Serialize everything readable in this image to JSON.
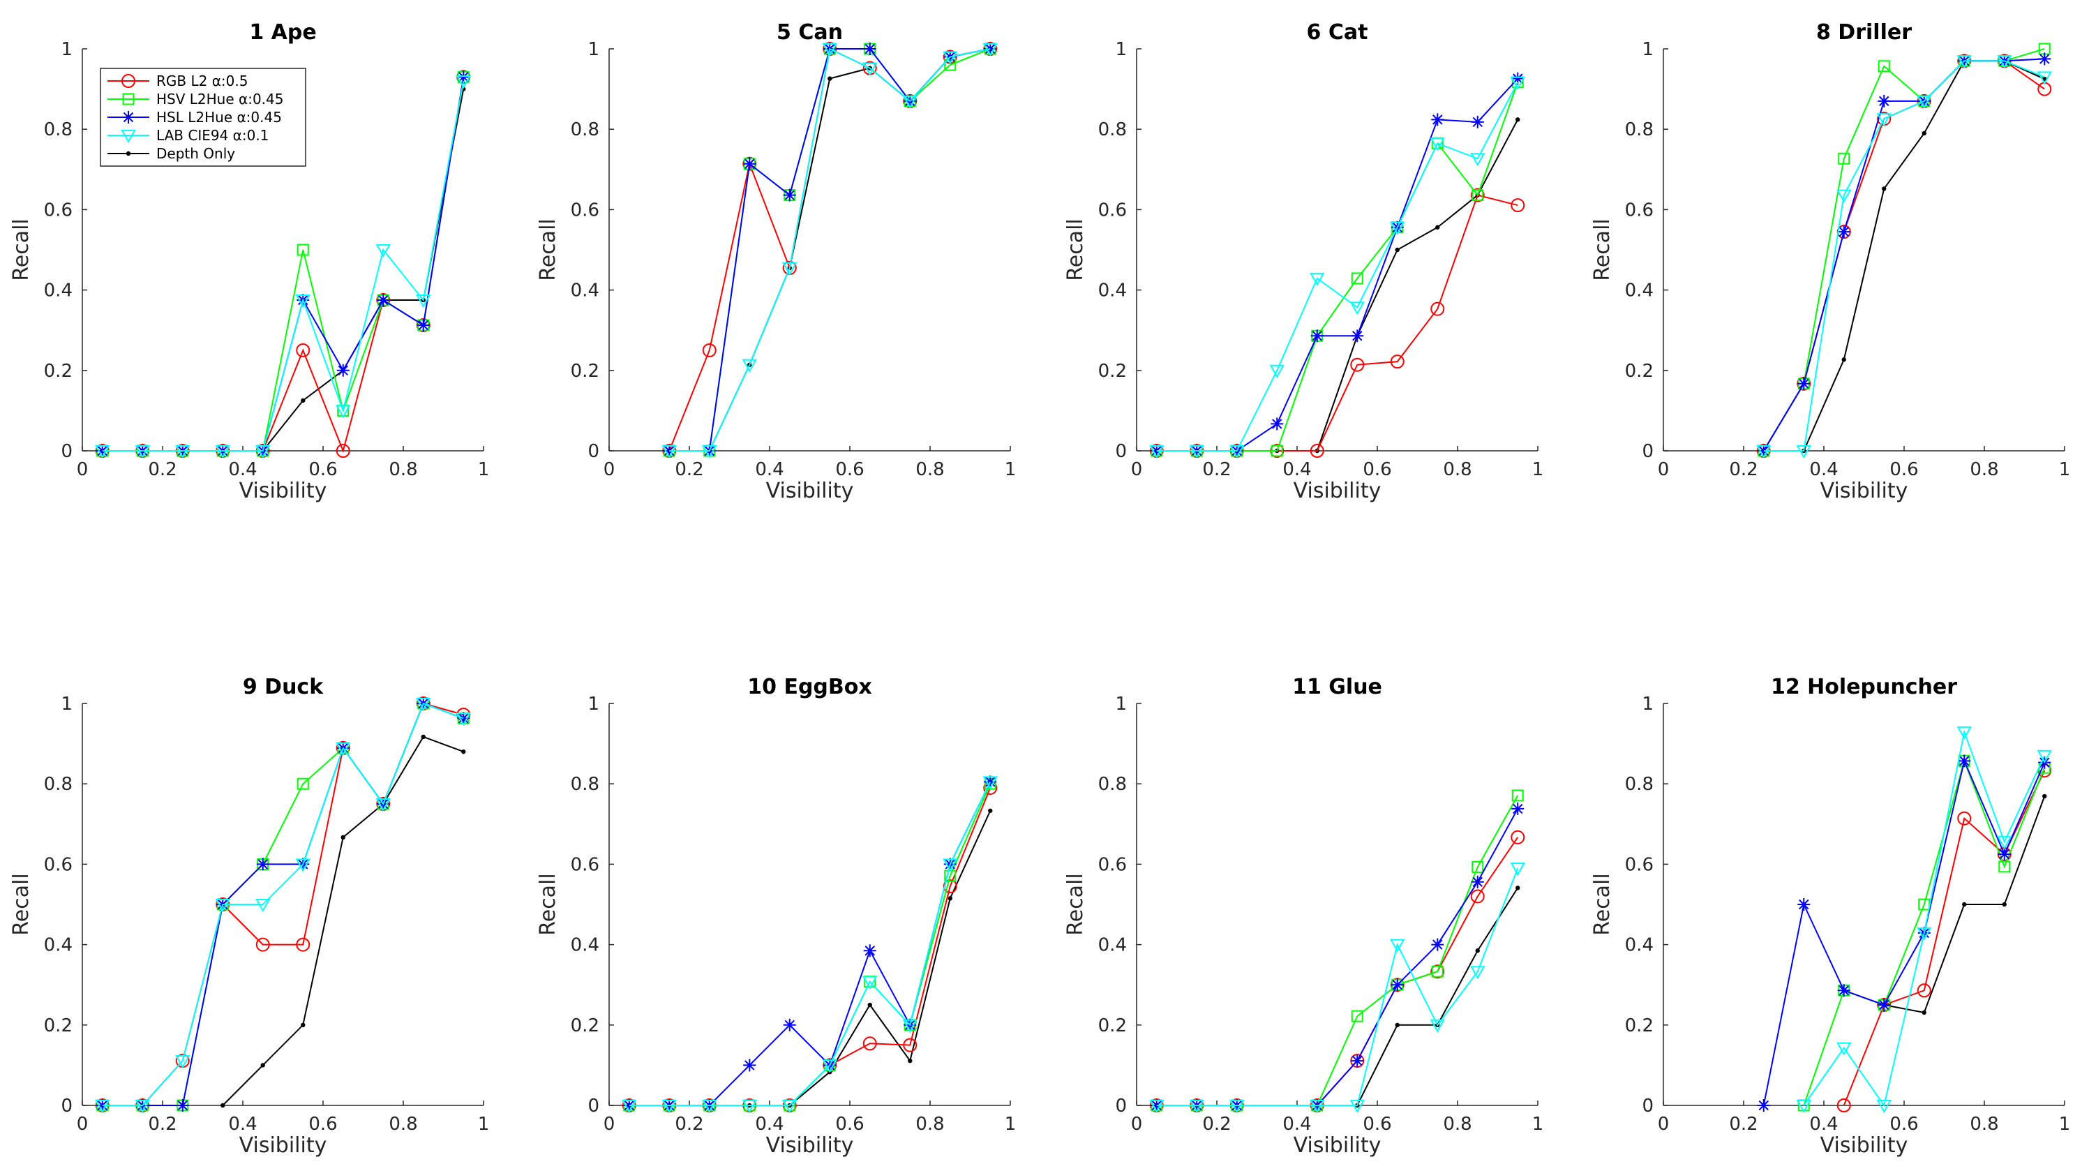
{
  "figure": {
    "legend_location": "upper-left of first panel"
  },
  "legend": [
    {
      "label": "RGB L2 α:0.5",
      "color": "#ff0000",
      "marker": "circle"
    },
    {
      "label": "HSV L2Hue α:0.45",
      "color": "#00ff00",
      "marker": "square"
    },
    {
      "label": "HSL L2Hue α:0.45",
      "color": "#0000ff",
      "marker": "asterisk"
    },
    {
      "label": "LAB CIE94 α:0.1",
      "color": "#00ffff",
      "marker": "triangle-down"
    },
    {
      "label": "Depth Only",
      "color": "#000000",
      "marker": "dot"
    }
  ],
  "chart_data": [
    {
      "type": "line",
      "title": "1 Ape",
      "xlabel": "Visibility",
      "ylabel": "Recall",
      "xlim": [
        0,
        1
      ],
      "ylim": [
        0,
        1
      ],
      "xticks": [
        "0",
        "0.2",
        "0.4",
        "0.6",
        "0.8",
        "1"
      ],
      "yticks": [
        "0",
        "0.2",
        "0.4",
        "0.6",
        "0.8",
        "1"
      ],
      "x": [
        0.05,
        0.15,
        0.25,
        0.35,
        0.45,
        0.55,
        0.65,
        0.75,
        0.85,
        0.95
      ],
      "series": [
        {
          "name": "RGB L2 α:0.5",
          "values": [
            0,
            0,
            0,
            0,
            0,
            0.25,
            0,
            0.375,
            0.3125,
            0.93
          ]
        },
        {
          "name": "HSV L2Hue α:0.45",
          "values": [
            0,
            0,
            0,
            0,
            0,
            0.5,
            0.1,
            0.375,
            0.3125,
            0.93
          ]
        },
        {
          "name": "HSL L2Hue α:0.45",
          "values": [
            0,
            0,
            0,
            0,
            0,
            0.375,
            0.2,
            0.375,
            0.3125,
            0.93
          ]
        },
        {
          "name": "LAB CIE94 α:0.1",
          "values": [
            0,
            0,
            0,
            0,
            0,
            0.375,
            0.1,
            0.5,
            0.375,
            0.92
          ]
        },
        {
          "name": "Depth Only",
          "values": [
            0,
            0,
            0,
            0,
            0,
            0.125,
            0.2,
            0.375,
            0.375,
            0.9
          ]
        }
      ]
    },
    {
      "type": "line",
      "title": "5 Can",
      "xlabel": "Visibility",
      "ylabel": "Recall",
      "xlim": [
        0,
        1
      ],
      "ylim": [
        0,
        1
      ],
      "xticks": [
        "0",
        "0.2",
        "0.4",
        "0.6",
        "0.8",
        "1"
      ],
      "yticks": [
        "0",
        "0.2",
        "0.4",
        "0.6",
        "0.8",
        "1"
      ],
      "x": [
        0.15,
        0.25,
        0.35,
        0.45,
        0.55,
        0.65,
        0.75,
        0.85,
        0.95
      ],
      "series": [
        {
          "name": "RGB L2 α:0.5",
          "values": [
            0,
            0.25,
            0.714,
            0.455,
            1.0,
            0.952,
            0.87,
            0.98,
            1.0
          ]
        },
        {
          "name": "HSV L2Hue α:0.45",
          "values": [
            0,
            0,
            0.714,
            0.636,
            1.0,
            1.0,
            0.87,
            0.96,
            1.0
          ]
        },
        {
          "name": "HSL L2Hue α:0.45",
          "values": [
            0,
            0,
            0.714,
            0.636,
            1.0,
            1.0,
            0.87,
            0.98,
            1.0
          ]
        },
        {
          "name": "LAB CIE94 α:0.1",
          "values": [
            0,
            0,
            0.214,
            0.455,
            1.0,
            0.952,
            0.87,
            0.98,
            1.0
          ]
        },
        {
          "name": "Depth Only",
          "values": [
            0,
            0,
            0.214,
            0.455,
            0.926,
            0.952,
            0.87,
            0.98,
            1.0
          ]
        }
      ]
    },
    {
      "type": "line",
      "title": "6 Cat",
      "xlabel": "Visibility",
      "ylabel": "Recall",
      "xlim": [
        0,
        1
      ],
      "ylim": [
        0,
        1
      ],
      "xticks": [
        "0",
        "0.2",
        "0.4",
        "0.6",
        "0.8",
        "1"
      ],
      "yticks": [
        "0",
        "0.2",
        "0.4",
        "0.6",
        "0.8",
        "1"
      ],
      "x": [
        0.05,
        0.15,
        0.25,
        0.35,
        0.45,
        0.55,
        0.65,
        0.75,
        0.85,
        0.95
      ],
      "series": [
        {
          "name": "RGB L2 α:0.5",
          "values": [
            0,
            0,
            0,
            0,
            0,
            0.214,
            0.222,
            0.353,
            0.636,
            0.611
          ]
        },
        {
          "name": "HSV L2Hue α:0.45",
          "values": [
            0,
            0,
            0,
            0,
            0.286,
            0.429,
            0.556,
            0.765,
            0.636,
            0.917
          ]
        },
        {
          "name": "HSL L2Hue α:0.45",
          "values": [
            0,
            0,
            0,
            0.067,
            0.286,
            0.286,
            0.556,
            0.824,
            0.818,
            0.926
          ]
        },
        {
          "name": "LAB CIE94 α:0.1",
          "values": [
            0,
            0,
            0,
            0.2,
            0.429,
            0.357,
            0.556,
            0.765,
            0.727,
            0.917
          ]
        },
        {
          "name": "Depth Only",
          "values": [
            0,
            0,
            0,
            0,
            0,
            0.286,
            0.5,
            0.556,
            0.636,
            0.824
          ]
        }
      ]
    },
    {
      "type": "line",
      "title": "8 Driller",
      "xlabel": "Visibility",
      "ylabel": "Recall",
      "xlim": [
        0,
        1
      ],
      "ylim": [
        0,
        1
      ],
      "xticks": [
        "0",
        "0.2",
        "0.4",
        "0.6",
        "0.8",
        "1"
      ],
      "yticks": [
        "0",
        "0.2",
        "0.4",
        "0.6",
        "0.8",
        "1"
      ],
      "x": [
        0.25,
        0.35,
        0.45,
        0.55,
        0.65,
        0.75,
        0.85,
        0.95
      ],
      "series": [
        {
          "name": "RGB L2 α:0.5",
          "values": [
            0,
            0.167,
            0.545,
            0.826,
            0.87,
            0.97,
            0.97,
            0.9
          ]
        },
        {
          "name": "HSV L2Hue α:0.45",
          "values": [
            0,
            0.167,
            0.727,
            0.957,
            0.87,
            0.97,
            0.97,
            1.0
          ]
        },
        {
          "name": "HSL L2Hue α:0.45",
          "values": [
            0,
            0.167,
            0.545,
            0.87,
            0.87,
            0.97,
            0.97,
            0.975
          ]
        },
        {
          "name": "LAB CIE94 α:0.1",
          "values": [
            0,
            0,
            0.636,
            0.826,
            0.87,
            0.97,
            0.97,
            0.93
          ]
        },
        {
          "name": "Depth Only",
          "values": [
            0,
            0,
            0.227,
            0.652,
            0.79,
            0.97,
            0.97,
            0.925
          ]
        }
      ]
    },
    {
      "type": "line",
      "title": "9 Duck",
      "xlabel": "Visibility",
      "ylabel": "Recall",
      "xlim": [
        0,
        1
      ],
      "ylim": [
        0,
        1
      ],
      "xticks": [
        "0",
        "0.2",
        "0.4",
        "0.6",
        "0.8",
        "1"
      ],
      "yticks": [
        "0",
        "0.2",
        "0.4",
        "0.6",
        "0.8",
        "1"
      ],
      "x": [
        0.05,
        0.15,
        0.25,
        0.35,
        0.45,
        0.55,
        0.65,
        0.75,
        0.85,
        0.95
      ],
      "series": [
        {
          "name": "RGB L2 α:0.5",
          "values": [
            0,
            0,
            0.111,
            0.5,
            0.4,
            0.4,
            0.889,
            0.75,
            1.0,
            0.972
          ]
        },
        {
          "name": "HSV L2Hue α:0.45",
          "values": [
            0,
            0,
            0,
            0.5,
            0.6,
            0.8,
            0.889,
            0.75,
            1.0,
            0.963
          ]
        },
        {
          "name": "HSL L2Hue α:0.45",
          "values": [
            0,
            0,
            0,
            0.5,
            0.6,
            0.6,
            0.889,
            0.75,
            1.0,
            0.963
          ]
        },
        {
          "name": "LAB CIE94 α:0.1",
          "values": [
            0,
            0,
            0.111,
            0.5,
            0.5,
            0.6,
            0.889,
            0.75,
            1.0,
            0.963
          ]
        },
        {
          "name": "Depth Only",
          "values": [
            null,
            null,
            null,
            0,
            0.1,
            0.2,
            0.667,
            0.75,
            0.917,
            0.88
          ]
        }
      ]
    },
    {
      "type": "line",
      "title": "10 EggBox",
      "xlabel": "Visibility",
      "ylabel": "Recall",
      "xlim": [
        0,
        1
      ],
      "ylim": [
        0,
        1
      ],
      "xticks": [
        "0",
        "0.2",
        "0.4",
        "0.6",
        "0.8",
        "1"
      ],
      "yticks": [
        "0",
        "0.2",
        "0.4",
        "0.6",
        "0.8",
        "1"
      ],
      "x": [
        0.05,
        0.15,
        0.25,
        0.35,
        0.45,
        0.55,
        0.65,
        0.75,
        0.85,
        0.95
      ],
      "series": [
        {
          "name": "RGB L2 α:0.5",
          "values": [
            0,
            0,
            0,
            0,
            0,
            0.1,
            0.154,
            0.15,
            0.545,
            0.79
          ]
        },
        {
          "name": "HSV L2Hue α:0.45",
          "values": [
            0,
            0,
            0,
            0,
            0,
            0.1,
            0.308,
            0.2,
            0.571,
            0.8
          ]
        },
        {
          "name": "HSL L2Hue α:0.45",
          "values": [
            0,
            0,
            0,
            0.1,
            0.2,
            0.1,
            0.385,
            0.2,
            0.6,
            0.805
          ]
        },
        {
          "name": "LAB CIE94 α:0.1",
          "values": [
            0,
            0,
            0,
            0,
            0,
            0.1,
            0.308,
            0.2,
            0.6,
            0.805
          ]
        },
        {
          "name": "Depth Only",
          "values": [
            0,
            0,
            0,
            0,
            0,
            0.083,
            0.25,
            0.111,
            0.515,
            0.733
          ]
        }
      ]
    },
    {
      "type": "line",
      "title": "11 Glue",
      "xlabel": "Visibility",
      "ylabel": "Recall",
      "xlim": [
        0,
        1
      ],
      "ylim": [
        0,
        1
      ],
      "xticks": [
        "0",
        "0.2",
        "0.4",
        "0.6",
        "0.8",
        "1"
      ],
      "yticks": [
        "0",
        "0.2",
        "0.4",
        "0.6",
        "0.8",
        "1"
      ],
      "x": [
        0.05,
        0.15,
        0.25,
        0.35,
        0.45,
        0.55,
        0.65,
        0.75,
        0.85,
        0.95
      ],
      "series": [
        {
          "name": "RGB L2 α:0.5",
          "values": [
            0,
            0,
            0,
            null,
            0,
            0.111,
            0.3,
            0.333,
            0.52,
            0.667
          ]
        },
        {
          "name": "HSV L2Hue α:0.45",
          "values": [
            0,
            0,
            0,
            null,
            0,
            0.222,
            0.3,
            0.333,
            0.593,
            0.771
          ]
        },
        {
          "name": "HSL L2Hue α:0.45",
          "values": [
            0,
            0,
            0,
            null,
            0,
            0.111,
            0.3,
            0.4,
            0.556,
            0.738
          ]
        },
        {
          "name": "LAB CIE94 α:0.1",
          "values": [
            0,
            0,
            0,
            null,
            0,
            0,
            0.4,
            0.2,
            0.333,
            0.59
          ]
        },
        {
          "name": "Depth Only",
          "values": [
            0,
            0,
            0,
            null,
            0,
            0,
            0.2,
            0.2,
            0.385,
            0.541
          ]
        }
      ]
    },
    {
      "type": "line",
      "title": "12 Holepuncher",
      "xlabel": "Visibility",
      "ylabel": "Recall",
      "xlim": [
        0,
        1
      ],
      "ylim": [
        0,
        1
      ],
      "xticks": [
        "0",
        "0.2",
        "0.4",
        "0.6",
        "0.8",
        "1"
      ],
      "yticks": [
        "0",
        "0.2",
        "0.4",
        "0.6",
        "0.8",
        "1"
      ],
      "x": [
        0.25,
        0.35,
        0.45,
        0.55,
        0.65,
        0.75,
        0.85,
        0.95
      ],
      "series": [
        {
          "name": "RGB L2 α:0.5",
          "values": [
            null,
            null,
            0,
            0.25,
            0.286,
            0.714,
            0.625,
            0.833
          ]
        },
        {
          "name": "HSV L2Hue α:0.45",
          "values": [
            null,
            0,
            0.286,
            0.25,
            0.5,
            0.857,
            0.594,
            0.84
          ]
        },
        {
          "name": "HSL L2Hue α:0.45",
          "values": [
            0,
            0.5,
            0.286,
            0.25,
            0.429,
            0.857,
            0.625,
            0.853
          ]
        },
        {
          "name": "LAB CIE94 α:0.1",
          "values": [
            null,
            0,
            0.143,
            0,
            0.429,
            0.929,
            0.656,
            0.87
          ]
        },
        {
          "name": "Depth Only",
          "values": [
            null,
            null,
            null,
            0.25,
            0.231,
            0.5,
            0.5,
            0.769
          ]
        }
      ]
    }
  ]
}
